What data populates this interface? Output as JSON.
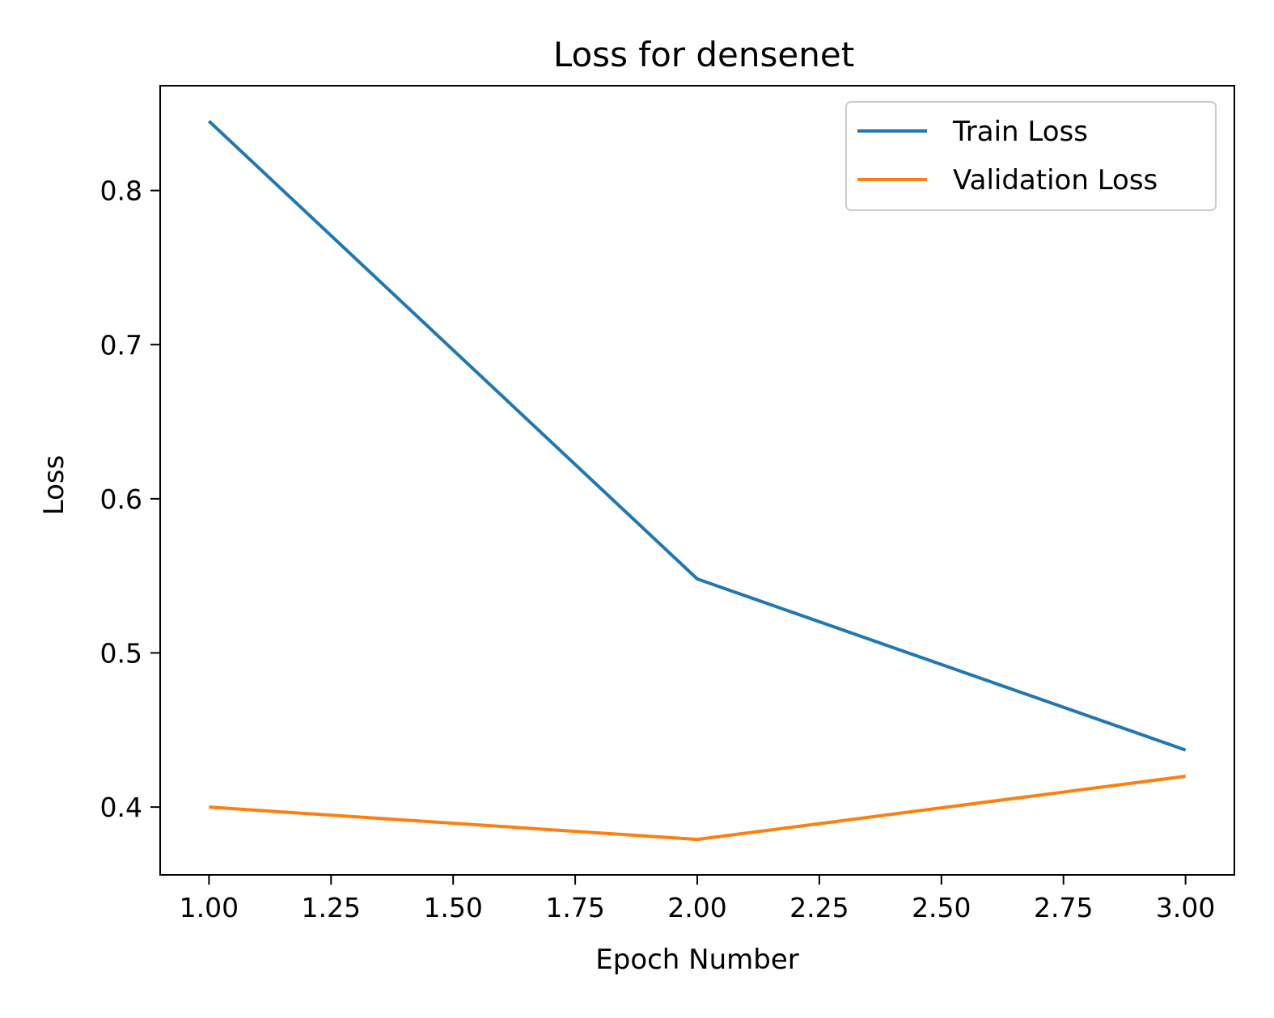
{
  "chart_data": {
    "type": "line",
    "title": "Loss for densenet",
    "xlabel": "Epoch Number",
    "ylabel": "Loss",
    "xlim": [
      0.9,
      3.1
    ],
    "ylim": [
      0.356,
      0.868
    ],
    "xticks": [
      1.0,
      1.25,
      1.5,
      1.75,
      2.0,
      2.25,
      2.5,
      2.75,
      3.0
    ],
    "xtick_labels": [
      "1.00",
      "1.25",
      "1.50",
      "1.75",
      "2.00",
      "2.25",
      "2.50",
      "2.75",
      "3.00"
    ],
    "yticks": [
      0.4,
      0.5,
      0.6,
      0.7,
      0.8
    ],
    "ytick_labels": [
      "0.4",
      "0.5",
      "0.6",
      "0.7",
      "0.8"
    ],
    "grid": false,
    "legend_position": "top-right",
    "x": [
      1,
      2,
      3
    ],
    "series": [
      {
        "name": "Train Loss",
        "values": [
          0.845,
          0.548,
          0.437
        ],
        "color": "#1f77b4"
      },
      {
        "name": "Validation Loss",
        "values": [
          0.4,
          0.379,
          0.42
        ],
        "color": "#ff7f0e"
      }
    ]
  }
}
